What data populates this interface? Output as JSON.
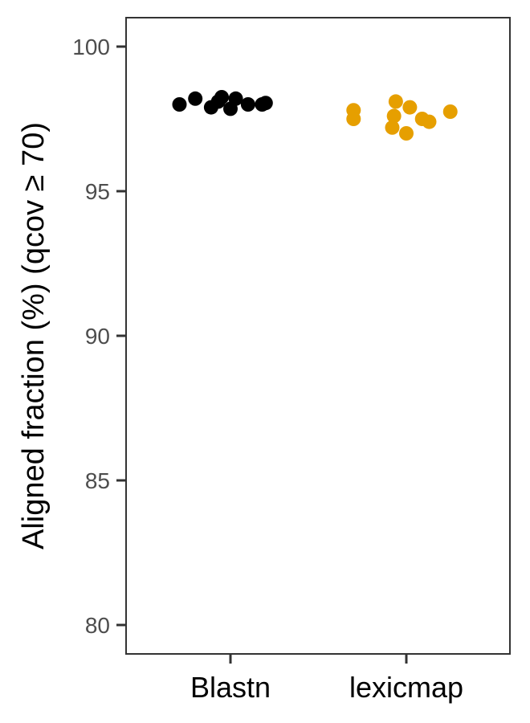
{
  "chart_data": {
    "type": "scatter",
    "xlabel": "",
    "ylabel": "Aligned fraction (%) (qcov ≥ 70)",
    "ylim": [
      79,
      101
    ],
    "yticks": [
      80,
      85,
      90,
      95,
      100
    ],
    "categories": [
      "Blastn",
      "lexicmap"
    ],
    "grid": false,
    "legend": "none",
    "series": [
      {
        "category": "Blastn",
        "color": "#000000",
        "points": [
          {
            "x": -0.29,
            "y": 98.0
          },
          {
            "x": -0.2,
            "y": 98.2
          },
          {
            "x": -0.11,
            "y": 97.9
          },
          {
            "x": -0.07,
            "y": 98.1
          },
          {
            "x": -0.05,
            "y": 98.25
          },
          {
            "x": 0.0,
            "y": 97.85
          },
          {
            "x": 0.03,
            "y": 98.2
          },
          {
            "x": 0.1,
            "y": 98.0
          },
          {
            "x": 0.18,
            "y": 98.0
          },
          {
            "x": 0.2,
            "y": 98.05
          }
        ]
      },
      {
        "category": "lexicmap",
        "color": "#E69F00",
        "points": [
          {
            "x": -0.3,
            "y": 97.8
          },
          {
            "x": -0.3,
            "y": 97.5
          },
          {
            "x": -0.08,
            "y": 97.2
          },
          {
            "x": -0.07,
            "y": 97.6
          },
          {
            "x": -0.06,
            "y": 98.1
          },
          {
            "x": 0.0,
            "y": 97.0
          },
          {
            "x": 0.02,
            "y": 97.9
          },
          {
            "x": 0.09,
            "y": 97.5
          },
          {
            "x": 0.13,
            "y": 97.4
          },
          {
            "x": 0.25,
            "y": 97.75
          }
        ]
      }
    ]
  }
}
